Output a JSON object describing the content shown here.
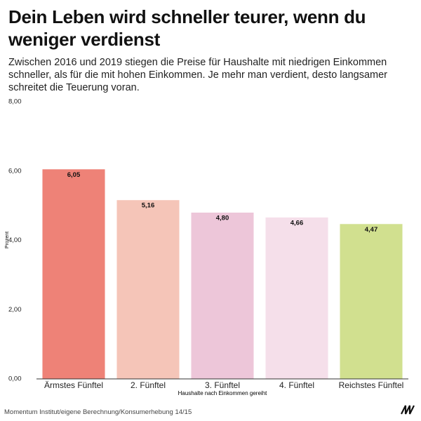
{
  "chart_data": {
    "type": "bar",
    "title": "Dein Leben wird schneller teurer, wenn du weniger verdienst",
    "subtitle": "Zwischen 2016 und 2019 stiegen die Preise für Haushalte mit niedrigen Einkommen schneller, als für die mit hohen Einkommen. Je mehr man verdient, desto langsamer schreitet die Teuerung voran.",
    "x_label": "Haushalte nach Einkommen gereiht",
    "y_label": "Prozent",
    "source": "Momentum Institut/eigene Berechnung/Konsumerhebung 14/15",
    "categories": [
      "Ärmstes Fünftel",
      "2. Fünftel",
      "3. Fünftel",
      "4. Fünftel",
      "Reichstes Fünftel"
    ],
    "values": [
      6.05,
      5.16,
      4.8,
      4.66,
      4.47
    ],
    "value_labels": [
      "6,05",
      "5,16",
      "4,80",
      "4,66",
      "4,47"
    ],
    "colors": [
      "#ee8277",
      "#f5c5b8",
      "#edc6d9",
      "#f5dfea",
      "#d1e08f"
    ],
    "ylim": [
      0,
      8
    ],
    "yticks": [
      {
        "value": 0,
        "label": "0,00"
      },
      {
        "value": 2,
        "label": "2,00"
      },
      {
        "value": 4,
        "label": "4,00"
      },
      {
        "value": 6,
        "label": "6,00"
      },
      {
        "value": 8,
        "label": "8,00"
      }
    ]
  }
}
